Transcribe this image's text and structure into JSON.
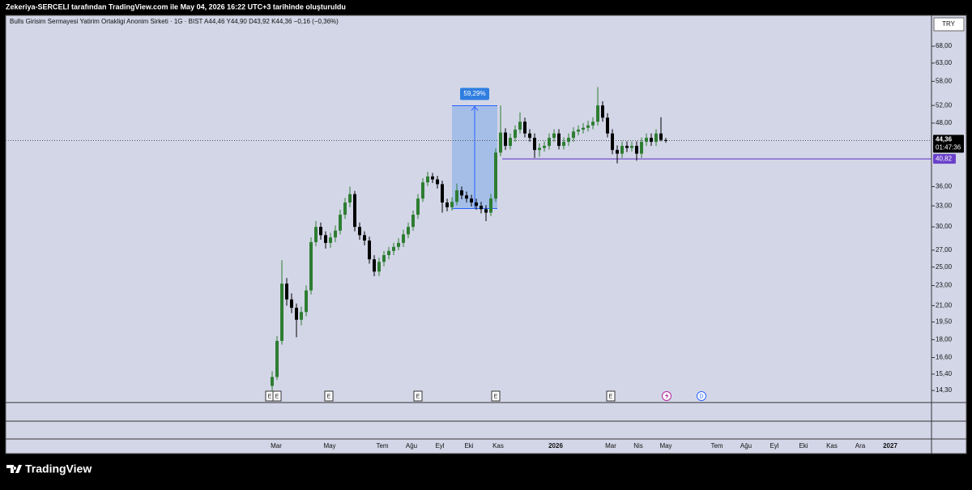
{
  "header": {
    "title": "Zekeriya-SERCELI tarafından TradingView.com ile May 04, 2026 16:22 UTC+3 tarihinde oluşturuldu"
  },
  "footer": {
    "brand": "TradingView"
  },
  "chart_data": {
    "type": "candlestick",
    "title": "Bulls Girisim Sermayesi Yatirim Ortakligi Anonim Sirketi · 1G · BIST   A44,46  Y44,90  D43,92  K44,36  −0,16 (−0,36%)",
    "currency": "TRY",
    "log_scale": true,
    "up_color": "#2e7d32",
    "down_color": "#000000",
    "ylim": [
      13.54,
      77.9
    ],
    "yticks": [
      {
        "value": 68,
        "label": "68,00"
      },
      {
        "value": 63,
        "label": "63,00"
      },
      {
        "value": 58,
        "label": "58,00"
      },
      {
        "value": 52,
        "label": "52,00"
      },
      {
        "value": 48,
        "label": "48,00"
      },
      {
        "value": 36,
        "label": "36,00"
      },
      {
        "value": 33,
        "label": "33,00"
      },
      {
        "value": 30,
        "label": "30,00"
      },
      {
        "value": 27,
        "label": "27,00"
      },
      {
        "value": 25,
        "label": "25,00"
      },
      {
        "value": 23,
        "label": "23,00"
      },
      {
        "value": 21,
        "label": "21,00"
      },
      {
        "value": 19.5,
        "label": "19,50"
      },
      {
        "value": 18,
        "label": "18,00"
      },
      {
        "value": 16.6,
        "label": "16,60"
      },
      {
        "value": 15.4,
        "label": "15,40"
      },
      {
        "value": 14.3,
        "label": "14,30"
      }
    ],
    "xtick_labels": [
      "Mar",
      "May",
      "Tem",
      "Ağu",
      "Eyl",
      "Eki",
      "Kas",
      "2026",
      "Mar",
      "Nis",
      "May",
      "Tem",
      "Ağu",
      "Eyl",
      "Eki",
      "Kas",
      "Ara",
      "2027"
    ],
    "events": [
      "E",
      "E",
      "E",
      "E",
      "E",
      "E",
      "D"
    ],
    "last_price": {
      "value": 44.36,
      "label": "44,36",
      "countdown": "01:47:36"
    },
    "hline": {
      "value": 40.82,
      "label": "40,82",
      "color": "#6a3fc9"
    },
    "measure": {
      "label": "59,29%",
      "from": 32.6,
      "to": 51.93
    },
    "ohlc": [
      [
        14.6,
        15.6,
        14.3,
        15.2
      ],
      [
        15.2,
        18.3,
        15.0,
        17.9
      ],
      [
        17.9,
        25.8,
        17.6,
        23.2
      ],
      [
        23.2,
        23.8,
        21.0,
        21.6
      ],
      [
        21.6,
        22.2,
        20.3,
        20.8
      ],
      [
        20.8,
        21.2,
        18.2,
        19.7
      ],
      [
        19.7,
        20.9,
        19.2,
        20.4
      ],
      [
        20.4,
        23.0,
        20.0,
        22.5
      ],
      [
        22.5,
        28.6,
        22.1,
        28.0
      ],
      [
        28.0,
        30.8,
        27.5,
        30.0
      ],
      [
        30.0,
        30.6,
        28.3,
        28.9
      ],
      [
        28.9,
        29.4,
        27.2,
        27.9
      ],
      [
        27.9,
        29.2,
        27.3,
        28.6
      ],
      [
        28.6,
        30.2,
        28.0,
        29.5
      ],
      [
        29.5,
        32.4,
        29.0,
        31.7
      ],
      [
        31.7,
        34.2,
        31.1,
        33.5
      ],
      [
        33.5,
        36.0,
        32.8,
        34.8
      ],
      [
        34.8,
        35.3,
        29.4,
        30.0
      ],
      [
        30.0,
        30.6,
        28.3,
        28.9
      ],
      [
        28.9,
        29.4,
        27.6,
        28.2
      ],
      [
        28.2,
        28.7,
        25.4,
        25.9
      ],
      [
        25.9,
        26.4,
        24.0,
        24.5
      ],
      [
        24.5,
        26.1,
        24.0,
        25.6
      ],
      [
        25.6,
        26.9,
        25.1,
        26.4
      ],
      [
        26.4,
        27.4,
        25.9,
        26.9
      ],
      [
        26.9,
        27.9,
        26.4,
        27.4
      ],
      [
        27.4,
        28.5,
        27.0,
        27.9
      ],
      [
        27.9,
        29.6,
        27.4,
        29.0
      ],
      [
        29.0,
        30.6,
        28.5,
        30.0
      ],
      [
        30.0,
        32.3,
        29.5,
        31.7
      ],
      [
        31.7,
        34.8,
        31.1,
        34.1
      ],
      [
        34.1,
        37.4,
        33.6,
        36.7
      ],
      [
        36.7,
        38.5,
        36.1,
        37.7
      ],
      [
        37.7,
        38.3,
        36.6,
        37.2
      ],
      [
        37.2,
        37.8,
        35.7,
        36.4
      ],
      [
        36.4,
        37.0,
        32.0,
        33.5
      ],
      [
        33.5,
        34.1,
        32.2,
        32.8
      ],
      [
        32.8,
        34.3,
        32.3,
        33.6
      ],
      [
        33.6,
        36.5,
        33.1,
        35.4
      ],
      [
        35.4,
        36.0,
        34.0,
        34.6
      ],
      [
        34.6,
        35.2,
        33.5,
        34.1
      ],
      [
        34.1,
        34.7,
        32.9,
        33.5
      ],
      [
        33.5,
        34.1,
        32.4,
        33.0
      ],
      [
        33.0,
        33.6,
        31.9,
        32.5
      ],
      [
        32.5,
        33.1,
        30.8,
        32.0
      ],
      [
        32.0,
        34.8,
        31.5,
        34.1
      ],
      [
        34.1,
        42.8,
        33.6,
        42.0
      ],
      [
        42.0,
        52.0,
        41.3,
        46.0
      ],
      [
        46.0,
        46.9,
        42.5,
        43.3
      ],
      [
        43.3,
        45.8,
        42.6,
        44.9
      ],
      [
        44.9,
        47.5,
        44.1,
        46.6
      ],
      [
        46.6,
        50.4,
        45.8,
        48.3
      ],
      [
        48.3,
        49.2,
        45.0,
        45.8
      ],
      [
        45.8,
        46.7,
        44.1,
        44.9
      ],
      [
        44.9,
        45.8,
        41.0,
        42.5
      ],
      [
        42.5,
        43.8,
        41.2,
        42.9
      ],
      [
        42.9,
        44.2,
        42.2,
        43.3
      ],
      [
        43.3,
        45.8,
        42.6,
        44.9
      ],
      [
        44.9,
        46.7,
        44.1,
        45.8
      ],
      [
        45.8,
        46.7,
        42.6,
        43.3
      ],
      [
        43.3,
        45.0,
        42.6,
        44.1
      ],
      [
        44.1,
        45.8,
        43.3,
        44.9
      ],
      [
        44.9,
        47.1,
        44.1,
        46.2
      ],
      [
        46.2,
        47.5,
        45.4,
        46.6
      ],
      [
        46.6,
        48.0,
        45.8,
        47.0
      ],
      [
        47.0,
        48.5,
        46.2,
        47.5
      ],
      [
        47.5,
        49.3,
        46.7,
        48.3
      ],
      [
        48.3,
        56.5,
        47.5,
        52.0
      ],
      [
        52.0,
        53.0,
        48.3,
        49.2
      ],
      [
        49.2,
        50.2,
        45.0,
        45.8
      ],
      [
        45.8,
        46.7,
        41.7,
        42.5
      ],
      [
        42.5,
        43.4,
        40.0,
        41.8
      ],
      [
        41.8,
        44.2,
        41.0,
        43.3
      ],
      [
        43.3,
        44.2,
        42.1,
        42.9
      ],
      [
        42.9,
        44.2,
        42.2,
        43.3
      ],
      [
        43.3,
        44.2,
        40.5,
        41.8
      ],
      [
        41.8,
        45.0,
        41.0,
        44.1
      ],
      [
        44.1,
        45.8,
        43.3,
        44.9
      ],
      [
        44.9,
        45.8,
        43.3,
        44.1
      ],
      [
        44.1,
        46.7,
        43.3,
        45.8
      ],
      [
        45.8,
        49.3,
        44.2,
        44.5
      ],
      [
        44.46,
        44.9,
        43.92,
        44.36
      ]
    ]
  }
}
